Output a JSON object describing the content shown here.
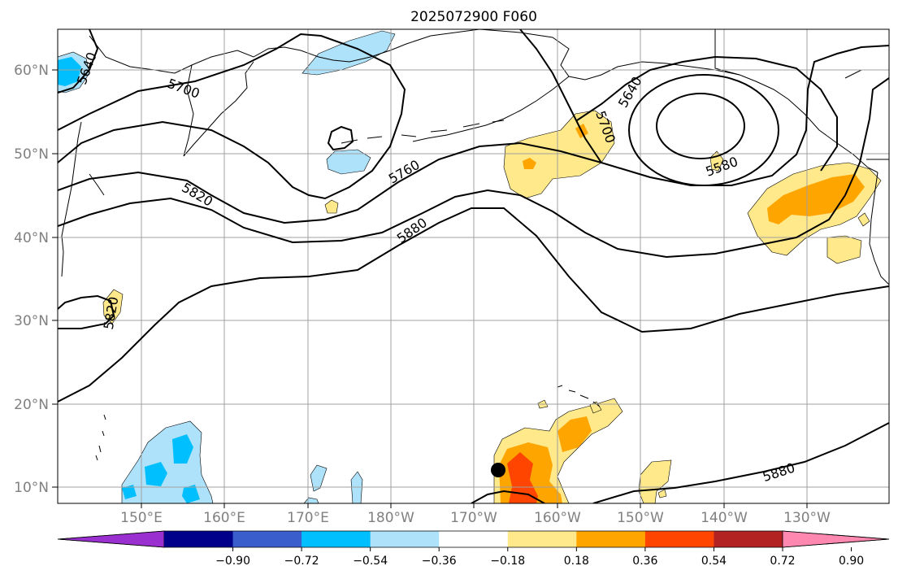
{
  "title": "2025072900 F060",
  "lat_ticks": [
    "60°N",
    "50°N",
    "40°N",
    "30°N",
    "20°N",
    "10°N"
  ],
  "lon_ticks": [
    "150°E",
    "160°E",
    "170°E",
    "180°W",
    "170°W",
    "160°W",
    "150°W",
    "140°W",
    "130°W"
  ],
  "contour_labels": {
    "c5640_nw": "5640",
    "c5700_w": "5700",
    "c5760": "5760",
    "c5820_w": "5820",
    "c5880_c": "5880",
    "c5820_sw": "5820",
    "c5640_ak": "5640",
    "c5700_ak": "5700",
    "c5580": "5580",
    "c5880_se": "5880"
  },
  "colorbar": {
    "ticks": [
      "−0.90",
      "−0.72",
      "−0.54",
      "−0.36",
      "−0.18",
      "0.18",
      "0.36",
      "0.54",
      "0.72",
      "0.90"
    ],
    "colors": [
      "#9b30d0",
      "#00008b",
      "#3a5fcd",
      "#00bfff",
      "#aee2fa",
      "#ffffff",
      "#ffe98a",
      "#ffa500",
      "#ff4500",
      "#b22222",
      "#ff88b0"
    ]
  },
  "colors": {
    "light_blue": "#aee2fa",
    "blue": "#00bfff",
    "yellow": "#ffe98a",
    "orange": "#ffa500",
    "red_orange": "#ff4500"
  },
  "marker": "storm-center-dot"
}
